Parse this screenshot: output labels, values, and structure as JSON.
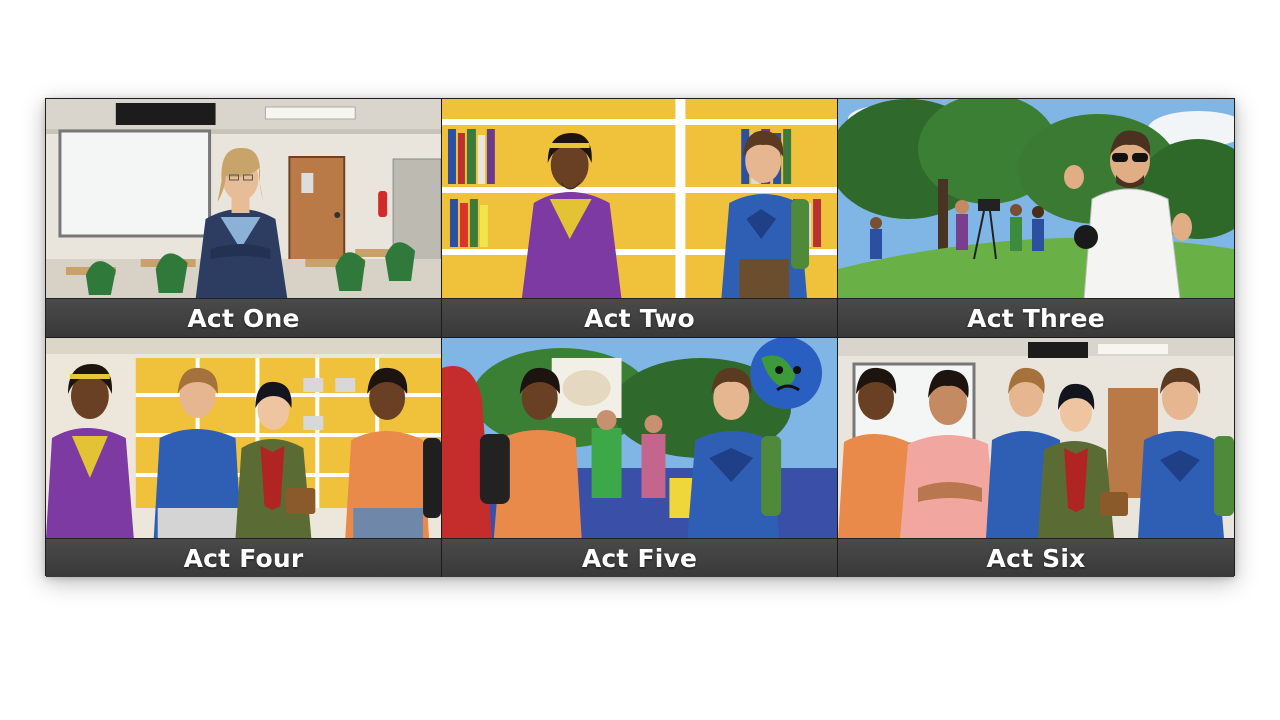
{
  "acts": [
    {
      "label": "Act One",
      "scene": "classroom-scene"
    },
    {
      "label": "Act Two",
      "scene": "library-scene"
    },
    {
      "label": "Act Three",
      "scene": "park-scene"
    },
    {
      "label": "Act Four",
      "scene": "classroom-group-scene"
    },
    {
      "label": "Act Five",
      "scene": "fair-scene"
    },
    {
      "label": "Act Six",
      "scene": "group-scene"
    }
  ],
  "colors": {
    "caption_bg": "#3f3f3f",
    "caption_text": "#ffffff",
    "frame": "#202020"
  }
}
